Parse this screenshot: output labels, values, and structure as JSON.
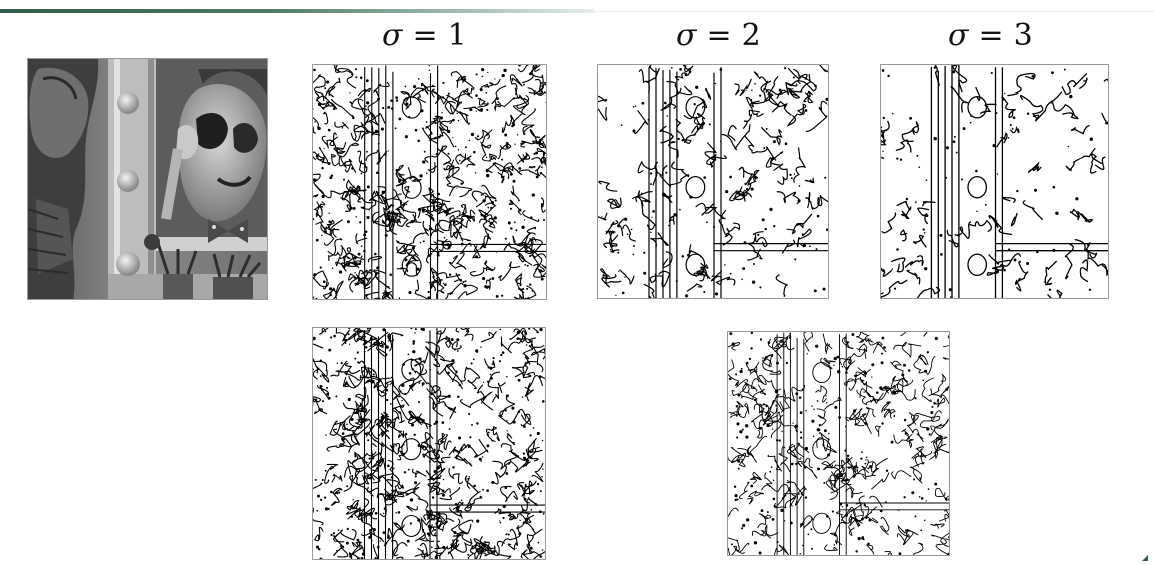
{
  "sigma_labels": [
    {
      "symbol": "σ",
      "equals": "=",
      "value": "1"
    },
    {
      "symbol": "σ",
      "equals": "=",
      "value": "2"
    },
    {
      "symbol": "σ",
      "equals": "=",
      "value": "3"
    }
  ]
}
